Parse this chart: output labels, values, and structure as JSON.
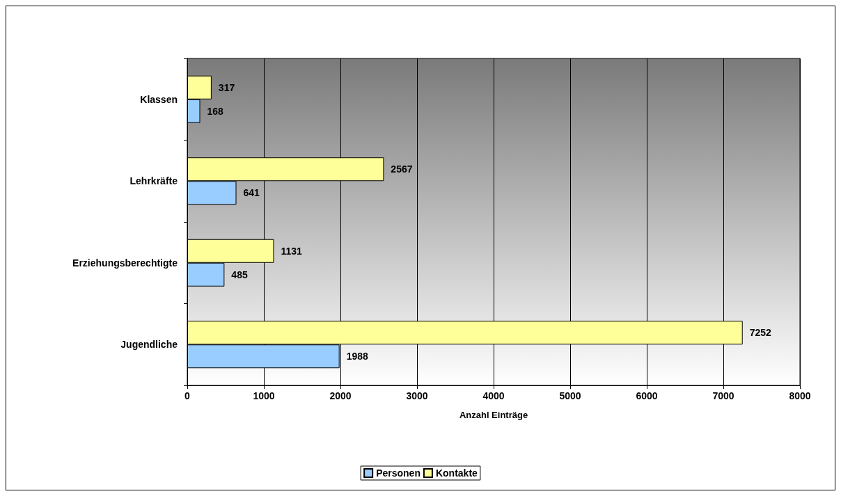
{
  "chart_data": {
    "type": "bar",
    "orientation": "horizontal",
    "xlabel": "Anzahl Einträge",
    "categories": [
      "Klassen",
      "Lehrkräfte",
      "Erziehungsberechtigte",
      "Jugendliche"
    ],
    "series": [
      {
        "name": "Personen",
        "color": "#99ccff",
        "values": [
          168,
          641,
          485,
          1988
        ]
      },
      {
        "name": "Kontakte",
        "color": "#ffff99",
        "values": [
          317,
          2567,
          1131,
          7252
        ]
      }
    ],
    "xlim": [
      0,
      8000
    ],
    "xticks": [
      0,
      1000,
      2000,
      3000,
      4000,
      5000,
      6000,
      7000,
      8000
    ],
    "grid": "x",
    "legend": "bottom",
    "data_labels": true
  }
}
